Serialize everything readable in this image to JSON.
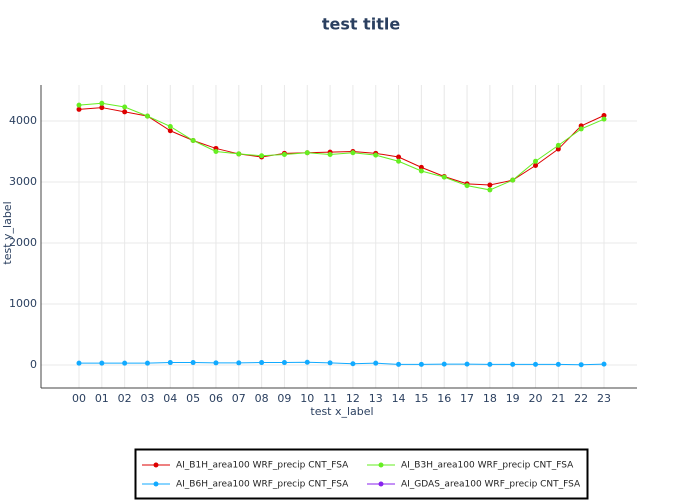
{
  "chart_data": {
    "type": "line",
    "title": "test title",
    "x_label": "test x_label",
    "y_label": "test y_label",
    "categories": [
      "00",
      "01",
      "02",
      "03",
      "04",
      "05",
      "06",
      "07",
      "08",
      "09",
      "10",
      "11",
      "12",
      "13",
      "14",
      "15",
      "16",
      "17",
      "18",
      "19",
      "20",
      "21",
      "22",
      "23"
    ],
    "series": [
      {
        "name": "AI_B1H_area100 WRF_precip CNT_FSA",
        "color": "#dd0000",
        "values": [
          4190,
          4220,
          4150,
          4080,
          3840,
          3680,
          3550,
          3460,
          3410,
          3470,
          3480,
          3490,
          3500,
          3470,
          3410,
          3240,
          3090,
          2970,
          2950,
          3030,
          3270,
          3540,
          3920,
          4090
        ]
      },
      {
        "name": "AI_B3H_area100 WRF_precip CNT_FSA",
        "color": "#66ee22",
        "values": [
          4260,
          4290,
          4230,
          4080,
          3910,
          3680,
          3500,
          3460,
          3430,
          3450,
          3480,
          3450,
          3480,
          3440,
          3340,
          3180,
          3080,
          2940,
          2870,
          3030,
          3340,
          3600,
          3870,
          4030
        ]
      },
      {
        "name": "AI_B6H_area100 WRF_precip CNT_FSA",
        "color": "#11aaff",
        "values": [
          30,
          30,
          30,
          30,
          40,
          40,
          35,
          35,
          40,
          40,
          45,
          35,
          20,
          30,
          10,
          10,
          15,
          15,
          10,
          10,
          10,
          10,
          5,
          15
        ]
      },
      {
        "name": "AI_GDAS_area100 WRF_precip CNT_FSA",
        "color": "#8822ee",
        "values": [
          null,
          null,
          null,
          null,
          null,
          null,
          null,
          null,
          null,
          null,
          null,
          null,
          null,
          null,
          null,
          null,
          null,
          null,
          null,
          null,
          null,
          null,
          null,
          null
        ]
      }
    ],
    "ylim": [
      -377,
      4590
    ],
    "yticks": [
      0,
      1000,
      2000,
      3000,
      4000
    ],
    "grid": true
  }
}
